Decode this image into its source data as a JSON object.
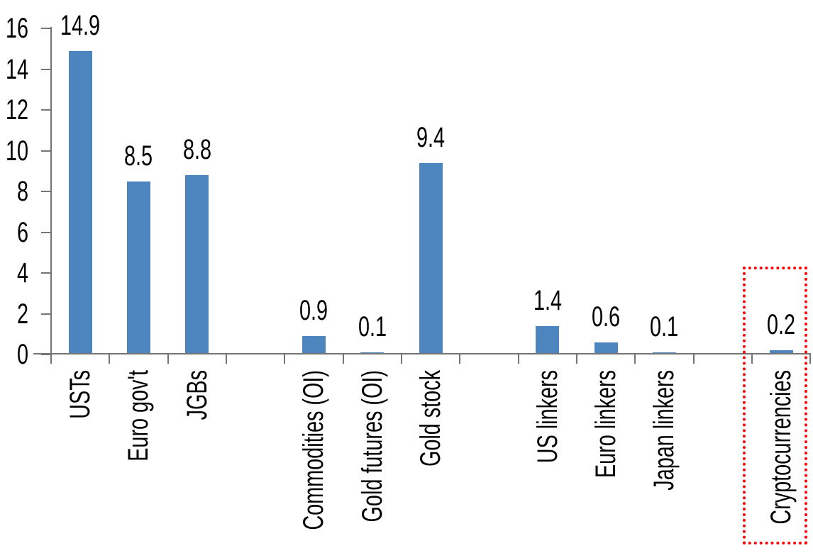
{
  "chart_data": {
    "type": "bar",
    "title": "",
    "xlabel": "",
    "ylabel": "",
    "categories": [
      "USTs",
      "Euro gov't",
      "JGBs",
      "Commodities (OI)",
      "Gold futures (OI)",
      "Gold stock",
      "US linkers",
      "Euro linkers",
      "Japan linkers",
      "Cryptocurrencies"
    ],
    "values": [
      14.9,
      8.5,
      8.8,
      0.9,
      0.1,
      9.4,
      1.4,
      0.6,
      0.1,
      0.2
    ],
    "data_labels": [
      "14.9",
      "8.5",
      "8.8",
      "0.9",
      "0.1",
      "9.4",
      "1.4",
      "0.6",
      "0.1",
      "0.2"
    ],
    "ylim": [
      0,
      16
    ],
    "ytick_step": 2,
    "ytick_labels": [
      "0",
      "2",
      "4",
      "6",
      "8",
      "10",
      "12",
      "14",
      "16"
    ],
    "grid": false,
    "legend": false,
    "category_label_rotation": "vertical-bottom-to-top",
    "group_gaps_after": [
      "JGBs",
      "Gold stock",
      "Japan linkers"
    ],
    "slots": [
      1,
      2,
      3,
      5,
      6,
      7,
      9,
      10,
      11,
      13
    ],
    "total_slots": 13,
    "bar_color": "#4D86BF",
    "axis_color": "#757575",
    "label_color": "#000000",
    "highlight": {
      "category": "Cryptocurrencies",
      "value": 0.2,
      "style": "red-dotted-rectangle",
      "color": "#FF0000"
    }
  }
}
